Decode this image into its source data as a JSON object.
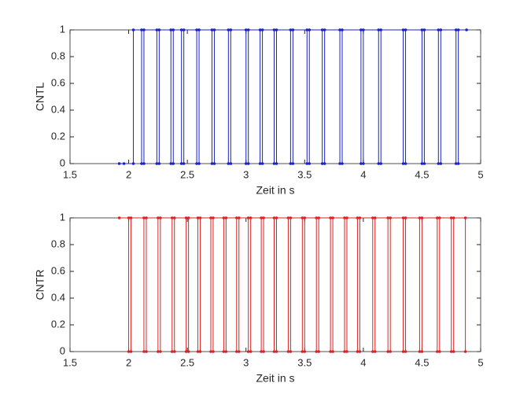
{
  "chart_data": [
    {
      "type": "line",
      "xlabel": "Zeit in s",
      "ylabel": "CNTL",
      "xlim": [
        1.5,
        5
      ],
      "ylim": [
        0,
        1
      ],
      "xticks": [
        1.5,
        2,
        2.5,
        3,
        3.5,
        4,
        4.5,
        5
      ],
      "yticks": [
        0,
        0.2,
        0.4,
        0.6,
        0.8,
        1
      ],
      "series": [
        {
          "color": "#1a22c8",
          "x": [
            1.92,
            1.96,
            2.04,
            2.04,
            2.11,
            2.11,
            2.13,
            2.13,
            2.24,
            2.24,
            2.26,
            2.26,
            2.36,
            2.36,
            2.38,
            2.38,
            2.45,
            2.45,
            2.47,
            2.47,
            2.58,
            2.58,
            2.6,
            2.6,
            2.71,
            2.71,
            2.73,
            2.73,
            2.85,
            2.85,
            2.87,
            2.87,
            3,
            3,
            3.02,
            3.02,
            3.12,
            3.12,
            3.14,
            3.14,
            3.24,
            3.24,
            3.26,
            3.26,
            3.38,
            3.38,
            3.4,
            3.4,
            3.52,
            3.52,
            3.54,
            3.54,
            3.65,
            3.65,
            3.67,
            3.67,
            3.8,
            3.8,
            3.82,
            3.82,
            3.98,
            3.98,
            4,
            4,
            4.13,
            4.13,
            4.15,
            4.15,
            4.34,
            4.34,
            4.36,
            4.36,
            4.5,
            4.5,
            4.52,
            4.52,
            4.64,
            4.64,
            4.66,
            4.66,
            4.79,
            4.79,
            4.81,
            4.81,
            4.88
          ],
          "values": [
            0,
            0,
            0,
            1,
            1,
            0,
            0,
            1,
            1,
            0,
            0,
            1,
            1,
            0,
            0,
            1,
            1,
            0,
            0,
            1,
            1,
            0,
            0,
            1,
            1,
            0,
            0,
            1,
            1,
            0,
            0,
            1,
            1,
            0,
            0,
            1,
            1,
            0,
            0,
            1,
            1,
            0,
            0,
            1,
            1,
            0,
            0,
            1,
            1,
            0,
            0,
            1,
            1,
            0,
            0,
            1,
            1,
            0,
            0,
            1,
            1,
            0,
            0,
            1,
            1,
            0,
            0,
            1,
            1,
            0,
            0,
            1,
            1,
            0,
            0,
            1,
            1,
            0,
            0,
            1,
            1,
            0,
            0,
            1,
            1
          ]
        }
      ]
    },
    {
      "type": "line",
      "xlabel": "Zeit in s",
      "ylabel": "CNTR",
      "xlim": [
        1.5,
        5
      ],
      "ylim": [
        0,
        1
      ],
      "xticks": [
        1.5,
        2,
        2.5,
        3,
        3.5,
        4,
        4.5,
        5
      ],
      "yticks": [
        0,
        0.2,
        0.4,
        0.6,
        0.8,
        1
      ],
      "series": [
        {
          "color": "#dd2222",
          "x": [
            1.92,
            2,
            2,
            2.02,
            2.02,
            2.13,
            2.13,
            2.15,
            2.15,
            2.25,
            2.25,
            2.27,
            2.27,
            2.37,
            2.37,
            2.39,
            2.39,
            2.49,
            2.49,
            2.51,
            2.51,
            2.59,
            2.59,
            2.61,
            2.61,
            2.7,
            2.7,
            2.72,
            2.72,
            2.81,
            2.81,
            2.83,
            2.83,
            2.92,
            2.92,
            2.94,
            2.94,
            3.02,
            3.02,
            3.04,
            3.04,
            3.13,
            3.13,
            3.15,
            3.15,
            3.24,
            3.24,
            3.26,
            3.26,
            3.36,
            3.36,
            3.38,
            3.38,
            3.48,
            3.48,
            3.5,
            3.5,
            3.6,
            3.6,
            3.62,
            3.62,
            3.72,
            3.72,
            3.74,
            3.74,
            3.84,
            3.84,
            3.86,
            3.86,
            3.95,
            3.95,
            3.97,
            3.97,
            4.08,
            4.08,
            4.1,
            4.1,
            4.21,
            4.21,
            4.23,
            4.23,
            4.34,
            4.34,
            4.36,
            4.36,
            4.48,
            4.48,
            4.5,
            4.5,
            4.63,
            4.63,
            4.65,
            4.65,
            4.75,
            4.75,
            4.77,
            4.77,
            4.87,
            4.87
          ],
          "values": [
            1,
            1,
            0,
            0,
            1,
            1,
            0,
            0,
            1,
            1,
            0,
            0,
            1,
            1,
            0,
            0,
            1,
            1,
            0,
            0,
            1,
            1,
            0,
            0,
            1,
            1,
            0,
            0,
            1,
            1,
            0,
            0,
            1,
            1,
            0,
            0,
            1,
            1,
            0,
            0,
            1,
            1,
            0,
            0,
            1,
            1,
            0,
            0,
            1,
            1,
            0,
            0,
            1,
            1,
            0,
            0,
            1,
            1,
            0,
            0,
            1,
            1,
            0,
            0,
            1,
            1,
            0,
            0,
            1,
            1,
            0,
            0,
            1,
            1,
            0,
            0,
            1,
            1,
            0,
            0,
            1,
            1,
            0,
            0,
            1,
            1,
            0,
            0,
            1,
            1,
            0,
            0,
            1,
            1,
            0,
            0,
            1,
            1,
            0
          ]
        }
      ]
    }
  ]
}
